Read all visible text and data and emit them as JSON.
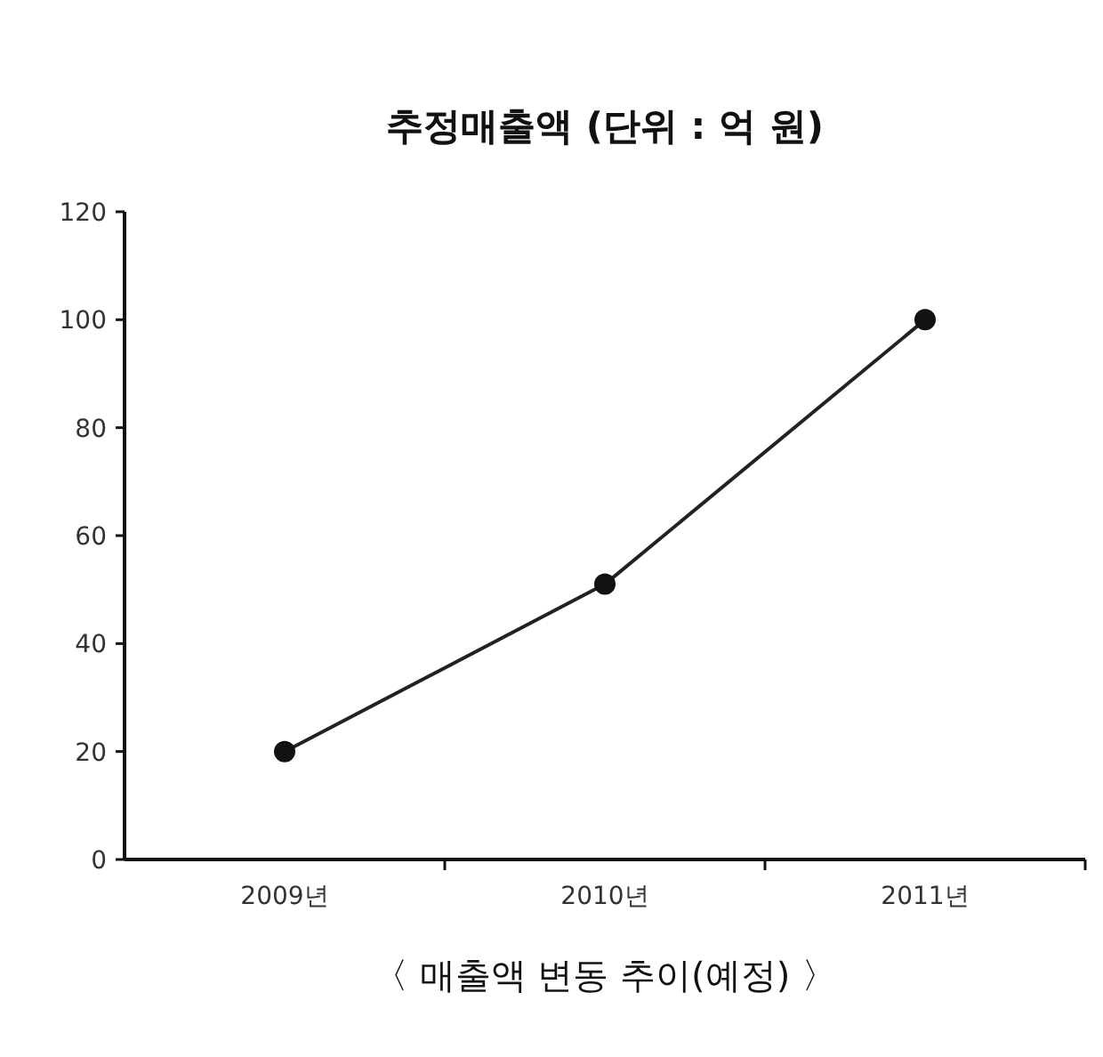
{
  "chart_data": {
    "type": "line",
    "title": "추정매출액 (단위 : 억 원)",
    "categories": [
      "2009년",
      "2010년",
      "2011년"
    ],
    "series": [
      {
        "color": "#222222",
        "values": [
          20,
          51,
          100
        ]
      }
    ],
    "marker": "circle",
    "line_style": "solid",
    "ylim": [
      0,
      120
    ],
    "yticks": [
      0,
      20,
      40,
      60,
      80,
      100,
      120
    ],
    "grid": false,
    "annotations": [
      "〈 매출액 변동 추이(예정) 〉"
    ]
  }
}
